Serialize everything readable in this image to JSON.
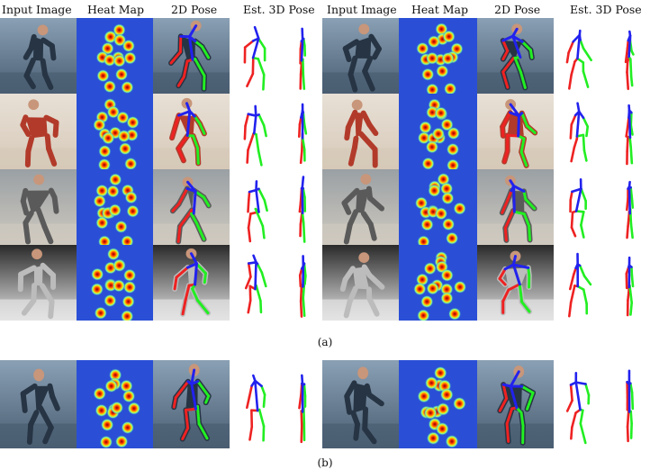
{
  "figure": {
    "headers_left": [
      "Input Image",
      "Heat Map",
      "2D Pose",
      "Est. 3D Pose"
    ],
    "headers_right": [
      "Input Image",
      "Heat Map",
      "2D Pose",
      "Est. 3D Pose"
    ],
    "caption_a": "(a)",
    "caption_b": "(b)"
  },
  "colors": {
    "pose_right": "#ee2222",
    "pose_left": "#22ee22",
    "pose_torso": "#2222ee",
    "heat_bg": "#2a4fd6"
  }
}
